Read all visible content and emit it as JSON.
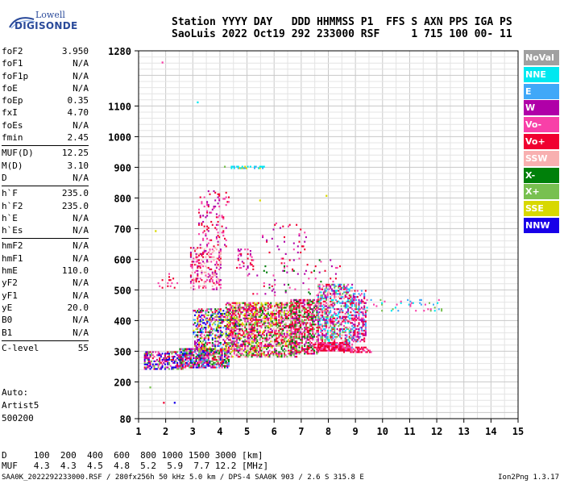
{
  "logo": {
    "top": "Lowell",
    "bottom": "DIGISONDE"
  },
  "header": {
    "line1": "Station YYYY DAY   DDD HHMMSS P1  FFS S AXN PPS IGA PS",
    "line2": "SaoLuis 2022 Oct19 292 233000 RSF     1 715 100 00- 11"
  },
  "params": [
    [
      [
        "foF2",
        "3.950"
      ],
      [
        "foF1",
        "N/A"
      ],
      [
        "foF1p",
        "N/A"
      ],
      [
        "foE",
        "N/A"
      ],
      [
        "foEp",
        "0.35"
      ],
      [
        "fxI",
        "4.70"
      ],
      [
        "foEs",
        "N/A"
      ],
      [
        "fmin",
        "2.45"
      ]
    ],
    [
      [
        "MUF(D)",
        "12.25"
      ],
      [
        "M(D)",
        "3.10"
      ],
      [
        "D",
        "N/A"
      ]
    ],
    [
      [
        "h`F",
        "235.0"
      ],
      [
        "h`F2",
        "235.0"
      ],
      [
        "h`E",
        "N/A"
      ],
      [
        "h`Es",
        "N/A"
      ]
    ],
    [
      [
        "hmF2",
        "N/A"
      ],
      [
        "hmF1",
        "N/A"
      ],
      [
        "hmE",
        "110.0"
      ],
      [
        "yF2",
        "N/A"
      ],
      [
        "yF1",
        "N/A"
      ],
      [
        "yE",
        "20.0"
      ],
      [
        "B0",
        "N/A"
      ],
      [
        "B1",
        "N/A"
      ]
    ],
    [
      [
        "C-level",
        "55"
      ]
    ]
  ],
  "autoscaler": [
    "Auto:",
    "Artist5",
    "500200"
  ],
  "legend": [
    {
      "label": "NoVal",
      "color": "#a0a0a0"
    },
    {
      "label": "NNE",
      "color": "#00e8f0"
    },
    {
      "label": "E",
      "color": "#40a8f8"
    },
    {
      "label": "W",
      "color": "#b000a8"
    },
    {
      "label": "Vo-",
      "color": "#f840a8"
    },
    {
      "label": "Vo+",
      "color": "#f00030"
    },
    {
      "label": "SSW",
      "color": "#f8b0b0"
    },
    {
      "label": "X-",
      "color": "#00800a"
    },
    {
      "label": "X+",
      "color": "#78c050"
    },
    {
      "label": "SSE",
      "color": "#d8d800"
    },
    {
      "label": "NNW",
      "color": "#1800e8"
    }
  ],
  "muf_table": {
    "line1": "D     100  200  400  600  800 1000 1500 3000 [km]",
    "line2": "MUF   4.3  4.3  4.5  4.8  5.2  5.9  7.7 12.2 [MHz]"
  },
  "footer": {
    "left": "SAA0K_2022292233000.RSF / 280fx256h 50 kHz 5.0 km / DPS-4 SAA0K 903 / 2.6 S 315.8 E",
    "right": "Ion2Png 1.3.17"
  },
  "chart_data": {
    "type": "scatter",
    "title": "",
    "xlabel": "",
    "ylabel": "",
    "xlim": [
      1,
      15
    ],
    "ylim": [
      80,
      1280
    ],
    "x_ticks": [
      1,
      2,
      3,
      4,
      5,
      6,
      7,
      8,
      9,
      10,
      11,
      12,
      13,
      14,
      15
    ],
    "y_ticks": [
      80,
      200,
      300,
      400,
      500,
      600,
      700,
      800,
      900,
      1000,
      1100,
      1280
    ],
    "grid": true,
    "legend_position": "right",
    "clusters": [
      {
        "fmin": 1.2,
        "fmax": 2.6,
        "hmin": 240,
        "hmax": 300,
        "density": 0.55,
        "colors": [
          10,
          3,
          5,
          4,
          10,
          8
        ]
      },
      {
        "fmin": 2.5,
        "fmax": 4.3,
        "hmin": 245,
        "hmax": 310,
        "density": 0.8,
        "colors": [
          10,
          3,
          4,
          5,
          8,
          7,
          2
        ]
      },
      {
        "fmin": 3.0,
        "fmax": 4.7,
        "hmin": 300,
        "hmax": 440,
        "density": 0.45,
        "colors": [
          4,
          5,
          3,
          7,
          8,
          9,
          2,
          10
        ]
      },
      {
        "fmin": 4.2,
        "fmax": 6.8,
        "hmin": 280,
        "hmax": 460,
        "density": 0.55,
        "colors": [
          4,
          5,
          5,
          8,
          7,
          3,
          9,
          6
        ]
      },
      {
        "fmin": 6.6,
        "fmax": 7.6,
        "hmin": 290,
        "hmax": 470,
        "density": 0.6,
        "colors": [
          5,
          4,
          5,
          3,
          7,
          8
        ]
      },
      {
        "fmin": 7.6,
        "fmax": 8.9,
        "hmin": 300,
        "hmax": 520,
        "density": 0.55,
        "colors": [
          5,
          4,
          3,
          6,
          2,
          1,
          8
        ]
      },
      {
        "fmin": 8.9,
        "fmax": 9.4,
        "hmin": 330,
        "hmax": 500,
        "density": 0.5,
        "colors": [
          5,
          4,
          3,
          2
        ]
      },
      {
        "fmin": 2.9,
        "fmax": 4.0,
        "hmin": 500,
        "hmax": 640,
        "density": 0.3,
        "colors": [
          4,
          5,
          3,
          6
        ]
      },
      {
        "fmin": 3.2,
        "fmax": 4.3,
        "hmin": 640,
        "hmax": 830,
        "density": 0.1,
        "colors": [
          3,
          4,
          5
        ]
      },
      {
        "fmin": 4.6,
        "fmax": 5.2,
        "hmin": 560,
        "hmax": 640,
        "density": 0.12,
        "colors": [
          4,
          5,
          3
        ]
      },
      {
        "fmin": 5.0,
        "fmax": 8.5,
        "hmin": 480,
        "hmax": 600,
        "density": 0.05,
        "colors": [
          4,
          5,
          3,
          7
        ]
      },
      {
        "fmin": 7.6,
        "fmax": 8.8,
        "hmin": 300,
        "hmax": 330,
        "density": 0.7,
        "colors": [
          5,
          5,
          4
        ]
      },
      {
        "fmin": 8.5,
        "fmax": 9.6,
        "hmin": 295,
        "hmax": 315,
        "density": 0.6,
        "colors": [
          5,
          4
        ]
      },
      {
        "fmin": 9.0,
        "fmax": 12.2,
        "hmin": 430,
        "hmax": 470,
        "density": 0.08,
        "colors": [
          4,
          2,
          1,
          8
        ]
      },
      {
        "fmin": 4.4,
        "fmax": 5.6,
        "hmin": 895,
        "hmax": 902,
        "density": 0.5,
        "colors": [
          1,
          2,
          9
        ]
      },
      {
        "fmin": 1.7,
        "fmax": 2.4,
        "hmin": 500,
        "hmax": 560,
        "density": 0.1,
        "colors": [
          4,
          5
        ]
      },
      {
        "fmin": 5.5,
        "fmax": 7.2,
        "hmin": 600,
        "hmax": 720,
        "density": 0.05,
        "colors": [
          4,
          5,
          3
        ]
      }
    ],
    "points": [
      [
        1.85,
        1240,
        4
      ],
      [
        3.15,
        1110,
        1
      ],
      [
        1.4,
        180,
        8
      ],
      [
        1.9,
        130,
        5
      ],
      [
        2.3,
        130,
        10
      ],
      [
        4.15,
        900,
        8
      ],
      [
        1.6,
        690,
        9
      ],
      [
        7.9,
        805,
        9
      ],
      [
        5.45,
        790,
        9
      ]
    ]
  }
}
